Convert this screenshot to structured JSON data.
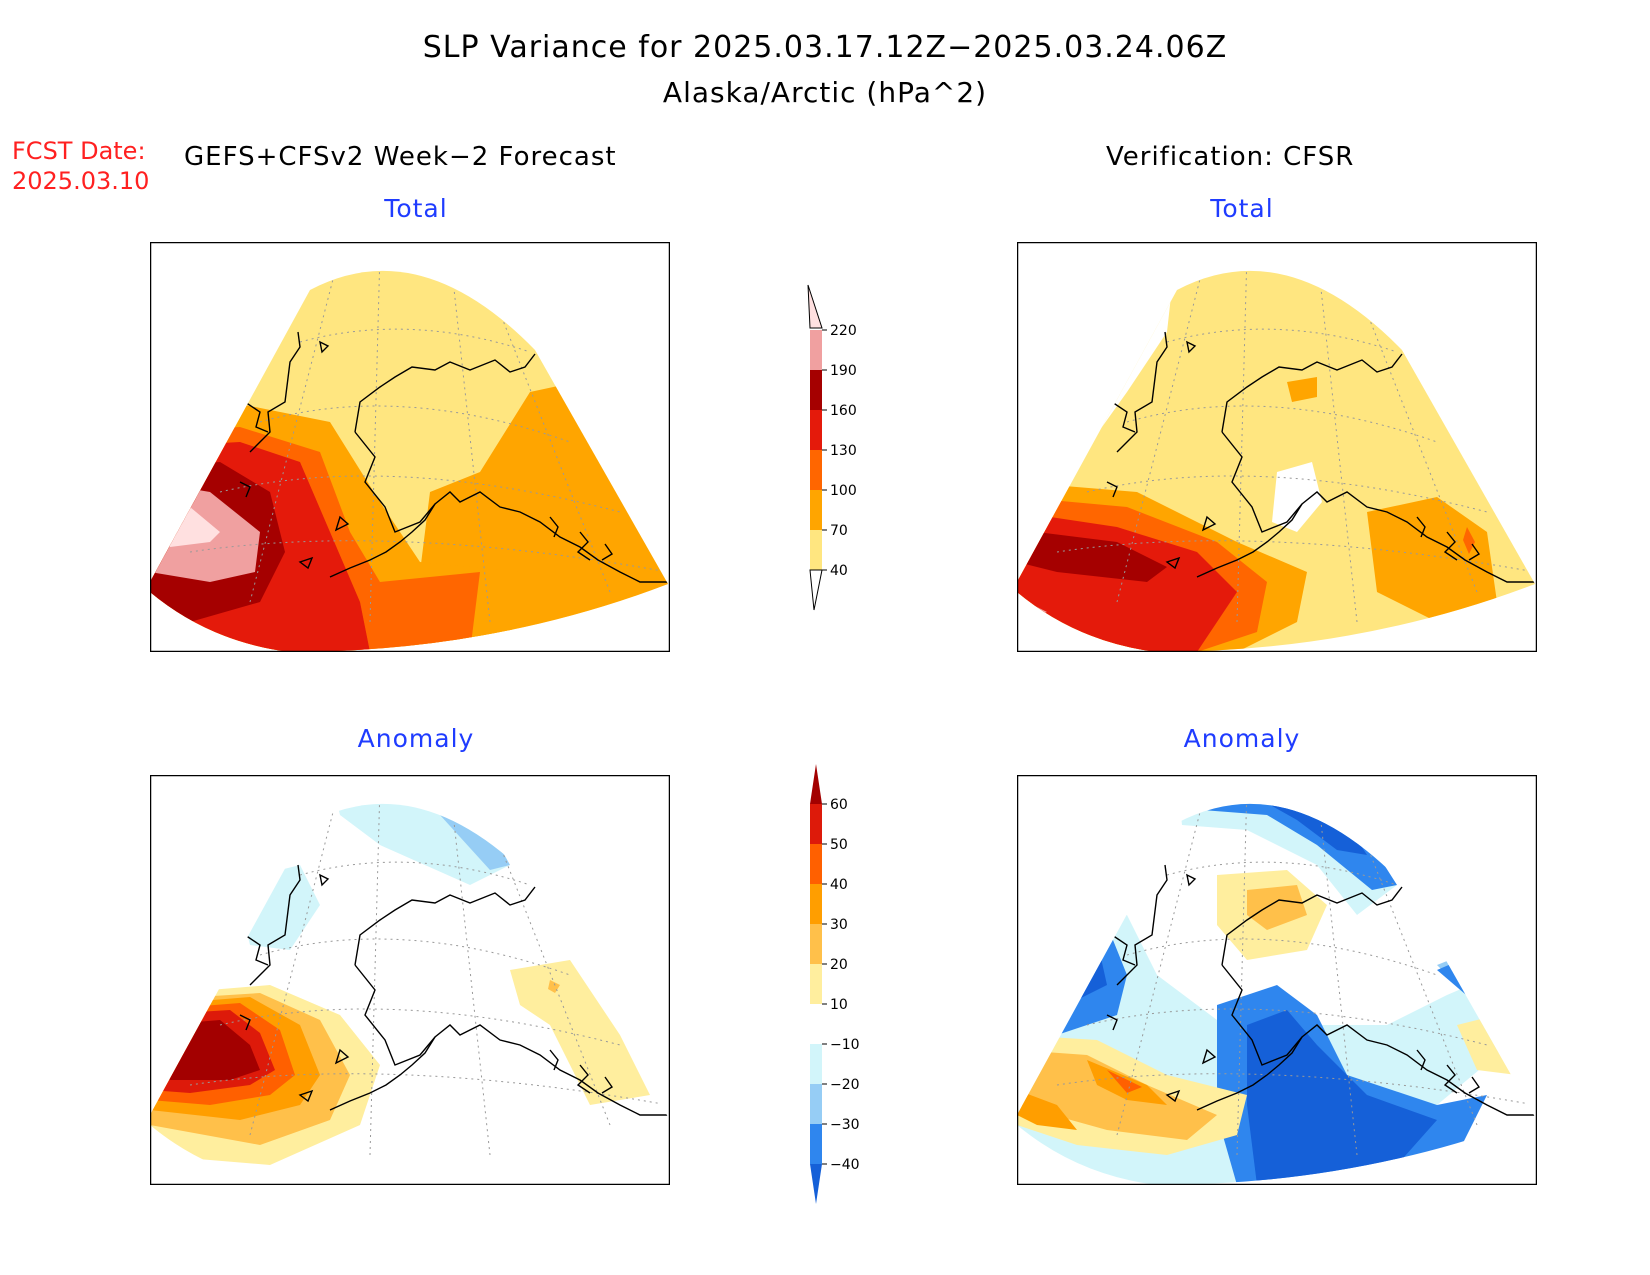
{
  "title": "SLP Variance for 2025.03.17.12Z−2025.03.24.06Z",
  "subtitle": "Alaska/Arctic (hPa^2)",
  "fcst_date_label": "FCST Date:",
  "fcst_date_value": "2025.03.10",
  "left_header": "GEFS+CFSv2 Week−2 Forecast",
  "right_header": "Verification: CFSR",
  "panels": {
    "fcst_total_title": "Total",
    "verif_total_title": "Total",
    "fcst_anom_title": "Anomaly",
    "verif_anom_title": "Anomaly"
  },
  "colorbar_total": {
    "labels": [
      "40",
      "70",
      "100",
      "130",
      "160",
      "190",
      "220"
    ],
    "colors": [
      "#ffe680",
      "#ffa500",
      "#ff6600",
      "#e41a0b",
      "#a50000",
      "#f0a0a0",
      "#ffe0e0"
    ]
  },
  "colorbar_anomaly": {
    "labels": [
      "−40",
      "−30",
      "−20",
      "−10",
      "10",
      "20",
      "30",
      "40",
      "50",
      "60"
    ],
    "colors": [
      "#1560d8",
      "#2f86ee",
      "#96cdf5",
      "#d2f5fa",
      "#ffffff",
      "#ffee9e",
      "#ffc04a",
      "#ff9e00",
      "#ff6000",
      "#dd1a0a",
      "#a30000"
    ]
  },
  "colors": {
    "title_text": "#000000",
    "panel_title_text": "#1f3cff",
    "fcst_date_text": "#ff2020"
  }
}
